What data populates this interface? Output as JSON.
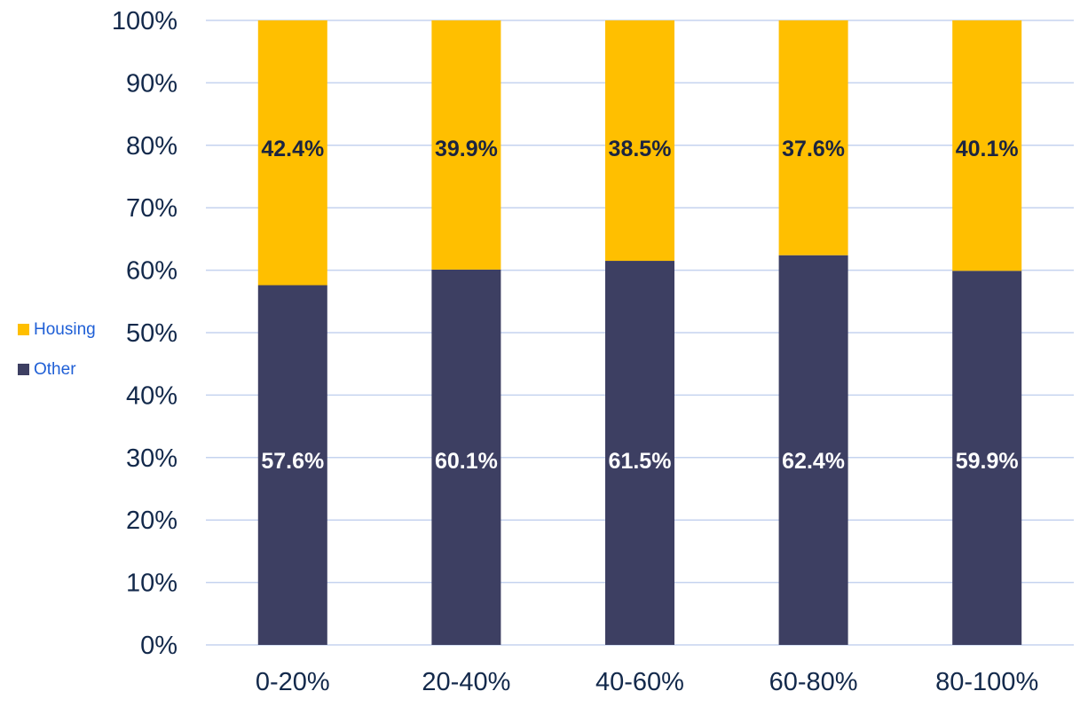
{
  "chart_data": {
    "type": "bar",
    "stacked": true,
    "title": "",
    "xlabel": "",
    "ylabel": "",
    "categories": [
      "0-20%",
      "20-40%",
      "40-60%",
      "60-80%",
      "80-100%"
    ],
    "series": [
      {
        "name": "Other",
        "color": "#3d3f62",
        "label_color": "#ffffff",
        "values": [
          57.6,
          60.1,
          61.5,
          62.4,
          59.9
        ],
        "labels": [
          "57.6%",
          "60.1%",
          "61.5%",
          "62.4%",
          "59.9%"
        ]
      },
      {
        "name": "Housing",
        "color": "#ffbf00",
        "label_color": "#1b2440",
        "values": [
          42.4,
          39.9,
          38.5,
          37.6,
          40.1
        ],
        "labels": [
          "42.4%",
          "39.9%",
          "38.5%",
          "37.6%",
          "40.1%"
        ]
      }
    ],
    "ylim": [
      0,
      100
    ],
    "yticks": [
      "0%",
      "10%",
      "20%",
      "30%",
      "40%",
      "50%",
      "60%",
      "70%",
      "80%",
      "90%",
      "100%"
    ],
    "grid": true,
    "legend": {
      "placement": "left",
      "order": [
        "Housing",
        "Other"
      ]
    },
    "colors": {
      "gridline": "#c5d3ef",
      "axis_text": "#13294b",
      "legend_text": "#1f5fd6"
    }
  }
}
